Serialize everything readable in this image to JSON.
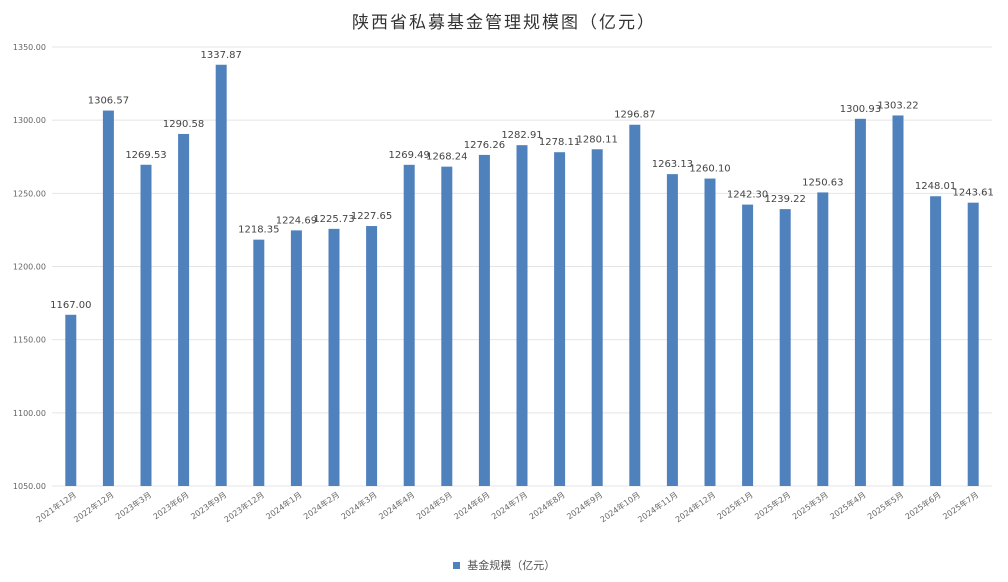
{
  "chart_data": {
    "type": "bar",
    "title": "陕西省私募基金管理规模图（亿元）",
    "xlabel": "",
    "ylabel": "",
    "ylim": [
      1050,
      1350
    ],
    "yticks": [
      "1050.00",
      "1100.00",
      "1150.00",
      "1200.00",
      "1250.00",
      "1300.00",
      "1350.00"
    ],
    "grid": true,
    "legend_position": "bottom",
    "color": "#4f81bd",
    "categories": [
      "2021年12月",
      "2022年12月",
      "2023年3月",
      "2023年6月",
      "2023年9月",
      "2023年12月",
      "2024年1月",
      "2024年2月",
      "2024年3月",
      "2024年4月",
      "2024年5月",
      "2024年6月",
      "2024年7月",
      "2024年8月",
      "2024年9月",
      "2024年10月",
      "2024年11月",
      "2024年12月",
      "2025年1月",
      "2025年2月",
      "2025年3月",
      "2025年4月",
      "2025年5月",
      "2025年6月",
      "2025年7月"
    ],
    "series": [
      {
        "name": "基金规模（亿元）",
        "values": [
          1167.0,
          1306.57,
          1269.53,
          1290.58,
          1337.87,
          1218.35,
          1224.69,
          1225.73,
          1227.65,
          1269.49,
          1268.24,
          1276.26,
          1282.91,
          1278.11,
          1280.11,
          1296.87,
          1263.13,
          1260.1,
          1242.3,
          1239.22,
          1250.63,
          1300.93,
          1303.22,
          1248.01,
          1243.61
        ],
        "labels": [
          "1167.00",
          "1306.57",
          "1269.53",
          "1290.58",
          "1337.87",
          "1218.35",
          "1224.69",
          "1225.73",
          "1227.65",
          "1269.49",
          "1268.24",
          "1276.26",
          "1282.91",
          "1278.11",
          "1280.11",
          "1296.87",
          "1263.13",
          "1260.10",
          "1242.30",
          "1239.22",
          "1250.63",
          "1300.93",
          "1303.22",
          "1248.01",
          "1243.61"
        ]
      }
    ]
  }
}
